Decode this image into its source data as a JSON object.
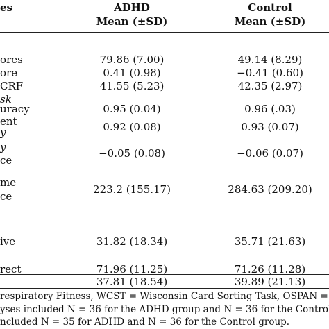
{
  "header": {
    "col1": "es",
    "adhd_title": "ADHD",
    "adhd_sub": "Mean (±SD)",
    "control_title": "Control",
    "control_sub": "Mean (±SD)"
  },
  "rows": [
    {
      "label": "ores",
      "adhd": "79.86 (7.00)",
      "control": "49.14 (8.29)"
    },
    {
      "label": "ore",
      "adhd": "0.41 (0.98)",
      "control": "−0.41 (0.60)"
    },
    {
      "label": "CRF",
      "adhd": "41.55 (5.23)",
      "control": "42.35 (2.97)"
    },
    {
      "label": "sk",
      "adhd": "",
      "control": ""
    },
    {
      "label": "uracy",
      "adhd": "0.95 (0.04)",
      "control": "0.96 (.03)"
    },
    {
      "label": "ent",
      "adhd": "",
      "control": ""
    },
    {
      "label": "y",
      "adhd": "0.92 (0.08)",
      "control": "0.93 (0.07)"
    },
    {
      "label": "y",
      "adhd": "",
      "control": ""
    },
    {
      "label": "ce",
      "adhd": "−0.05 (0.08)",
      "control": "−0.06 (0.07)"
    },
    {
      "label": "me",
      "adhd": "",
      "control": ""
    },
    {
      "label": "ce",
      "adhd": "223.2 (155.17)",
      "control": "284.63 (209.20)"
    },
    {
      "label": "ive",
      "adhd": "31.82 (18.34)",
      "control": "35.71 (21.63)"
    },
    {
      "label": "rect",
      "adhd": "71.96 (11.25)",
      "control": "71.26 (11.28)"
    },
    {
      "label": "",
      "adhd": "37.81 (18.54)",
      "control": "39.89 (21.13)"
    }
  ],
  "footnotes": [
    "respiratory Fitness, WCST = Wisconsin Card Sorting Task, OSPAN =",
    "yses included N = 36 for the ADHD group and N = 36 for the Control",
    "ncluded N = 35 for ADHD and N = 36 for the Control group."
  ]
}
